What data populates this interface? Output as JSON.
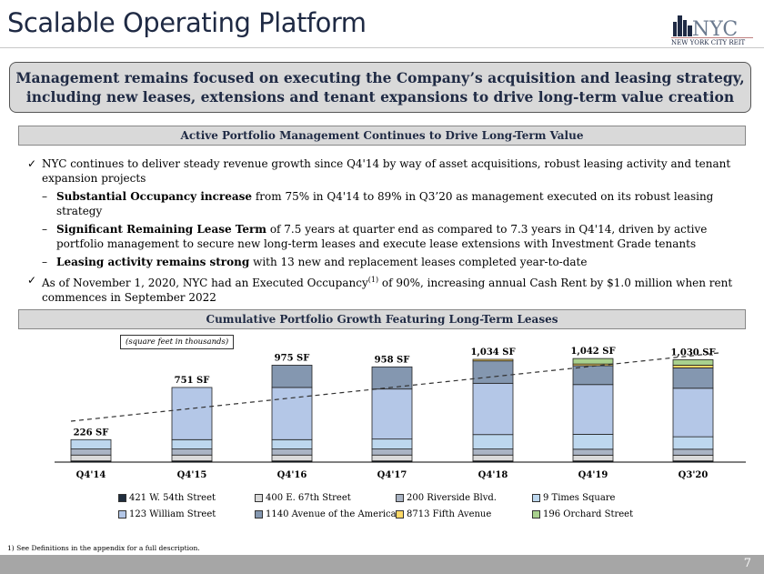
{
  "title": "Scalable Operating Platform",
  "logo": {
    "text": "NYC",
    "subtext": "NEW YORK CITY REIT"
  },
  "callout": "Management remains focused on executing the Company’s acquisition and leasing strategy, including new leases, extensions and tenant expansions to drive long-term value creation",
  "section1": "Active Portfolio Management Continues to Drive Long-Term Value",
  "bullets": [
    {
      "marker": "✓",
      "bold": "",
      "text": "NYC continues to deliver steady revenue growth since Q4'14 by way of asset acquisitions, robust leasing activity and tenant expansion projects"
    },
    {
      "marker": "–",
      "bold": "Substantial Occupancy increase",
      "text": " from 75% in Q4'14 to 89% in Q3’20 as management executed on its robust leasing strategy"
    },
    {
      "marker": "–",
      "bold": "Significant Remaining Lease Term",
      "text": " of 7.5 years at quarter end as compared to 7.3 years in Q4'14, driven by active portfolio management to secure new long-term leases and execute lease extensions with Investment Grade tenants"
    },
    {
      "marker": "–",
      "bold": "Leasing activity remains strong",
      "text": " with 13 new and replacement leases completed year-to-date"
    },
    {
      "marker": "✓",
      "bold": "",
      "text": "As of November 1, 2020, NYC had an Executed Occupancy",
      "sup": "(1)",
      "text2": " of 90%, increasing annual Cash Rent by $1.0 million when rent commences in September 2022"
    }
  ],
  "section2": "Cumulative Portfolio Growth Featuring Long-Term Leases",
  "chart_data": {
    "type": "bar",
    "stacked": true,
    "note": "(square feet in thousands)",
    "categories": [
      "Q4'14",
      "Q4'15",
      "Q4'16",
      "Q4'17",
      "Q4'18",
      "Q4'19",
      "Q3'20"
    ],
    "totals_labels": [
      "226 SF",
      "751 SF",
      "975 SF",
      "958 SF",
      "1,034 SF",
      "1,042 SF",
      "1,030 SF"
    ],
    "totals": [
      226,
      751,
      975,
      958,
      1034,
      1042,
      1030
    ],
    "series": [
      {
        "name": "421 W. 54th Street",
        "color": "#1f2d3d",
        "values": [
          12,
          12,
          12,
          12,
          12,
          12,
          12
        ]
      },
      {
        "name": "400 E. 67th Street",
        "color": "#d9d9d9",
        "values": [
          59,
          59,
          59,
          59,
          59,
          58,
          58
        ]
      },
      {
        "name": "200 Riverside Blvd.",
        "color": "#aab4c4",
        "values": [
          61,
          61,
          61,
          61,
          61,
          60,
          60
        ]
      },
      {
        "name": "9 Times Square",
        "color": "#bdd7ee",
        "values": [
          94,
          94,
          94,
          100,
          145,
          150,
          125
        ]
      },
      {
        "name": "123 William Street",
        "color": "#b4c7e7",
        "values": [
          0,
          525,
          525,
          503,
          516,
          500,
          488
        ]
      },
      {
        "name": "1140 Avenue of the Americas",
        "color": "#8497b0",
        "values": [
          0,
          0,
          224,
          223,
          225,
          190,
          205
        ]
      },
      {
        "name": "8713 Fifth Avenue",
        "color": "#ffd966",
        "values": [
          0,
          0,
          0,
          0,
          16,
          17,
          27
        ]
      },
      {
        "name": "196 Orchard Street",
        "color": "#a9d18e",
        "values": [
          0,
          0,
          0,
          0,
          0,
          55,
          55
        ]
      }
    ],
    "trendline": "dashed",
    "legend": "bottom",
    "ylim": [
      0,
      1100
    ]
  },
  "footnote": "1)    See Definitions in the appendix for a full description.",
  "page_number": "7"
}
